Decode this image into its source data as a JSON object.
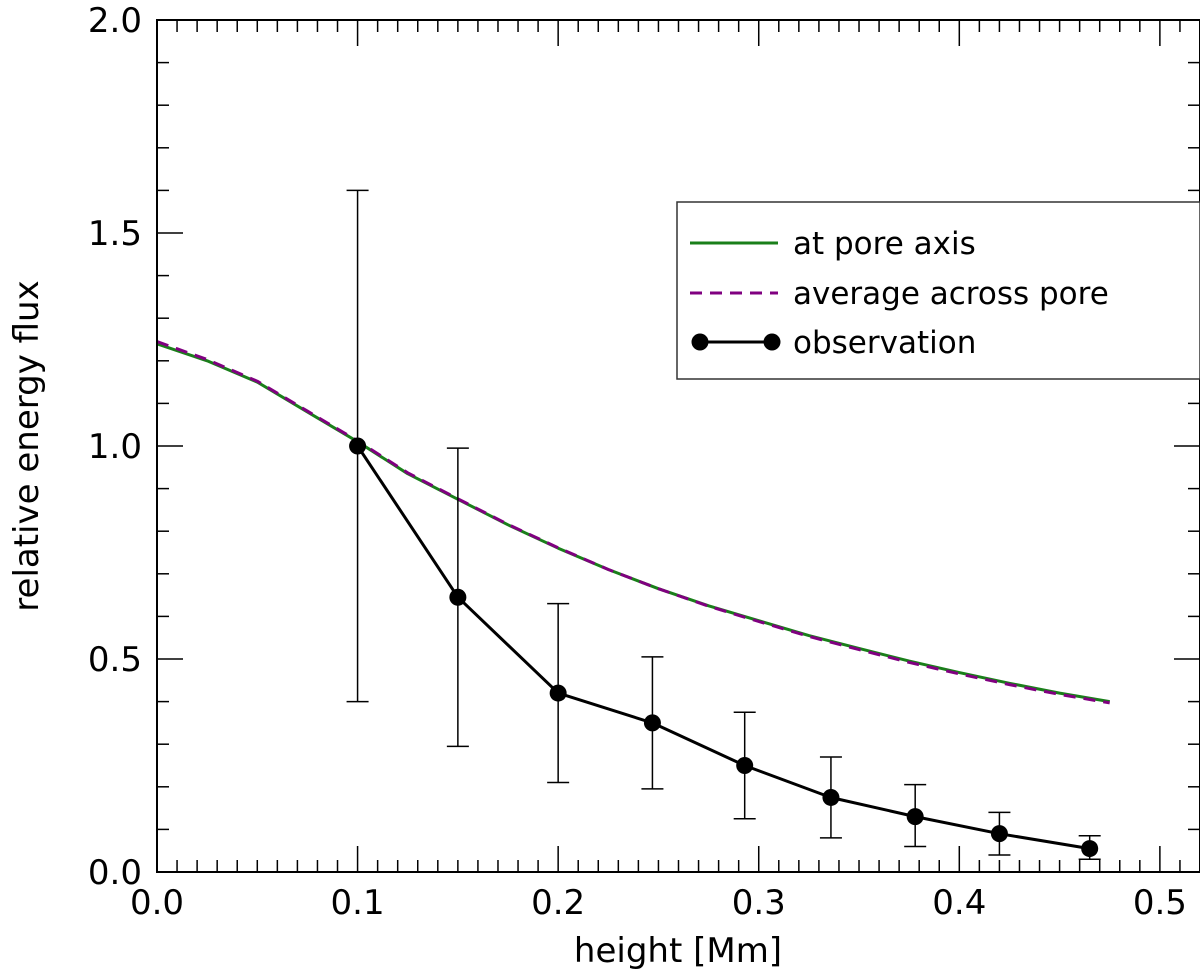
{
  "chart_data": {
    "type": "line",
    "title": "",
    "xlabel": "height [Mm]",
    "ylabel": "relative energy flux",
    "xlim": [
      0.0,
      0.52
    ],
    "ylim": [
      0.0,
      2.0
    ],
    "xticks": [
      0.0,
      0.1,
      0.2,
      0.3,
      0.4,
      0.5
    ],
    "xtick_labels": [
      "0.0",
      "0.1",
      "0.2",
      "0.3",
      "0.4",
      "0.5"
    ],
    "yticks": [
      0.0,
      0.5,
      1.0,
      1.5,
      2.0
    ],
    "ytick_labels": [
      "0.0",
      "0.5",
      "1.0",
      "1.5",
      "2.0"
    ],
    "legend_position": "upper-right",
    "series": [
      {
        "name": "at pore axis",
        "style": "solid",
        "color": "#1a7f1a",
        "x": [
          0.0,
          0.025,
          0.05,
          0.075,
          0.1,
          0.125,
          0.15,
          0.175,
          0.2,
          0.225,
          0.25,
          0.275,
          0.3,
          0.325,
          0.35,
          0.375,
          0.4,
          0.425,
          0.45,
          0.475
        ],
        "y": [
          1.24,
          1.2,
          1.15,
          1.08,
          1.01,
          0.935,
          0.875,
          0.815,
          0.76,
          0.71,
          0.665,
          0.625,
          0.59,
          0.555,
          0.525,
          0.495,
          0.468,
          0.443,
          0.42,
          0.4
        ]
      },
      {
        "name": "average across pore",
        "style": "dashed",
        "color": "#800080",
        "x": [
          0.0,
          0.025,
          0.05,
          0.075,
          0.1,
          0.125,
          0.15,
          0.175,
          0.2,
          0.225,
          0.25,
          0.275,
          0.3,
          0.325,
          0.35,
          0.375,
          0.4,
          0.425,
          0.45,
          0.475
        ],
        "y": [
          1.245,
          1.203,
          1.152,
          1.082,
          1.012,
          0.937,
          0.876,
          0.816,
          0.761,
          0.71,
          0.665,
          0.624,
          0.588,
          0.553,
          0.522,
          0.492,
          0.465,
          0.44,
          0.417,
          0.397
        ]
      },
      {
        "name": "observation",
        "style": "solid-markers",
        "color": "#000000",
        "x": [
          0.1,
          0.15,
          0.2,
          0.247,
          0.293,
          0.336,
          0.378,
          0.42,
          0.465
        ],
        "y": [
          1.0,
          0.645,
          0.42,
          0.35,
          0.25,
          0.175,
          0.13,
          0.09,
          0.055
        ],
        "err_low": [
          0.4,
          0.295,
          0.21,
          0.195,
          0.125,
          0.08,
          0.06,
          0.04,
          0.03
        ],
        "err_high": [
          1.6,
          0.995,
          0.63,
          0.505,
          0.375,
          0.27,
          0.205,
          0.14,
          0.085
        ]
      }
    ]
  }
}
